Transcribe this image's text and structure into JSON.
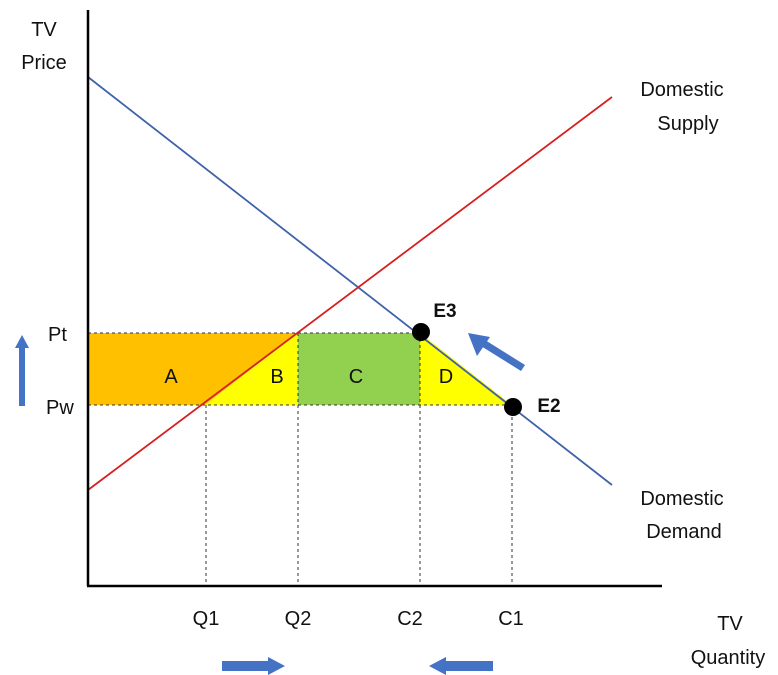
{
  "axes": {
    "y_label_line1": "TV",
    "y_label_line2": "Price",
    "x_label_line1": "TV",
    "x_label_line2": "Quantity"
  },
  "curves": {
    "supply_line1": "Domestic",
    "supply_line2": "Supply",
    "demand_line1": "Domestic",
    "demand_line2": "Demand",
    "supply_color": "#d62121",
    "demand_color": "#3f62a8"
  },
  "price_levels": {
    "tariff": "Pt",
    "world": "Pw"
  },
  "quantity_ticks": {
    "q1": "Q1",
    "q2": "Q2",
    "c2": "C2",
    "c1": "C1"
  },
  "regions": {
    "a": {
      "label": "A",
      "color": "#ffc000"
    },
    "b": {
      "label": "B",
      "color": "#ffff00"
    },
    "c": {
      "label": "C",
      "color": "#92d050"
    },
    "d": {
      "label": "D",
      "color": "#ffff00"
    }
  },
  "points": {
    "e3": "E3",
    "e2": "E2"
  },
  "arrow_color": "#4472c4",
  "arrows": [
    "arrow-up",
    "arrow-up-left",
    "arrow-right",
    "arrow-left"
  ]
}
